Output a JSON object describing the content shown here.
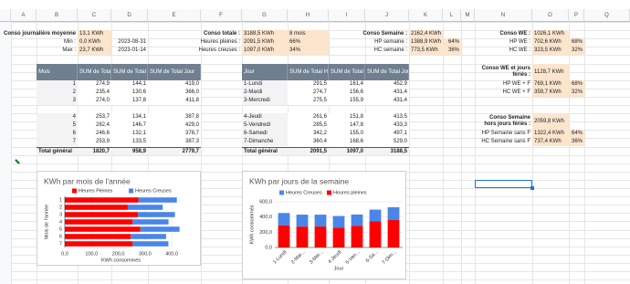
{
  "sheet": {
    "columns": [
      "A",
      "B",
      "C",
      "D",
      "E",
      "F",
      "G",
      "H",
      "I",
      "J",
      "K",
      "L",
      "M",
      "N",
      "O",
      "P",
      "Q"
    ],
    "daily": {
      "label": "Conso journalière moyenne :",
      "value": "13,1 KWh",
      "min_label": "Min :",
      "min_value": "0,0 KWh",
      "min_date": "2023-08-31",
      "max_label": "Max :",
      "max_value": "23,7 KWh",
      "max_date": "2023-01-14"
    },
    "total": {
      "label": "Conso totale :",
      "value": "3188,5 KWh",
      "months": "8 mois",
      "hp_label": "Heures pleines :",
      "hp_value": "2091,5 KWh",
      "hp_pct": "66%",
      "hc_label": "Heures creuses :",
      "hc_value": "1097,0 KWh",
      "hc_pct": "34%"
    },
    "week": {
      "label": "Conso Semaine :",
      "value": "2162,4 KWh",
      "hp_label": "HP semaine :",
      "hp_value": "1388,9 KWh",
      "hp_pct": "64%",
      "hc_label": "HC semaine :",
      "hc_value": "773,5 KWh",
      "hc_pct": "36%"
    },
    "weekend": {
      "label": "Conso WE :",
      "value": "1026,1 KWh",
      "hp_label": "HP WE :",
      "hp_value": "702,6 KWh",
      "hp_pct": "68%",
      "hc_label": "HC WE :",
      "hc_value": "323,5 KWh",
      "hc_pct": "32%"
    },
    "weekend_holidays": {
      "label": "Conso WE et jours fériés :",
      "value": "1128,7 KWh",
      "hp_label": "HP WE + F",
      "hp_value": "769,1 KWh",
      "hp_pct": "68%",
      "hc_label": "HC WE + F",
      "hc_value": "359,7 KWh",
      "hc_pct": "32%"
    },
    "week_no_holidays": {
      "label": "Conso Semaine hors jours fériés :",
      "value": "2059,8 KWh",
      "hp_label": "HP Semaine sans F",
      "hp_value": "1322,4 KWh",
      "hp_pct": "64%",
      "hc_label": "HC Semaine sans F",
      "hc_value": "737,4 KWh",
      "hc_pct": "36%"
    },
    "pivot_month": {
      "headers": [
        "Mois",
        "SUM de Total HP",
        "SUM de Total HC",
        "SUM de Total Jour"
      ],
      "rows": [
        [
          "1",
          "274,9",
          "144,1",
          "419,0"
        ],
        [
          "2",
          "235,4",
          "130,6",
          "366,0"
        ],
        [
          "3",
          "274,0",
          "137,8",
          "411,8"
        ],
        [
          "4",
          "253,7",
          "134,1",
          "387,8"
        ],
        [
          "5",
          "282,4",
          "146,7",
          "429,0"
        ],
        [
          "6",
          "246,6",
          "132,1",
          "378,7"
        ],
        [
          "7",
          "253,9",
          "133,5",
          "387,3"
        ]
      ],
      "total": [
        "Total général",
        "1820,7",
        "958,9",
        "2779,7"
      ]
    },
    "pivot_day": {
      "headers": [
        "Jour",
        "SUM de Total HP",
        "SUM de Total HC",
        "SUM de Total Jour"
      ],
      "rows": [
        [
          "1-Lundi",
          "291,5",
          "161,4",
          "452,9"
        ],
        [
          "2-Mardi",
          "274,7",
          "156,6",
          "431,4"
        ],
        [
          "3-Mercredi",
          "275,5",
          "155,9",
          "431,4"
        ],
        [
          "4-Jeudi",
          "261,6",
          "151,8",
          "413,5"
        ],
        [
          "5-Vendredi",
          "285,5",
          "147,8",
          "433,3"
        ],
        [
          "6-Samedi",
          "342,2",
          "155,0",
          "497,1"
        ],
        [
          "7-Dimanche",
          "360,4",
          "168,6",
          "529,0"
        ]
      ],
      "total": [
        "Total général",
        "2091,5",
        "1097,0",
        "3188,5"
      ]
    }
  },
  "chart_data": [
    {
      "type": "bar",
      "title": "KWh par mois de l'année",
      "x_label": "KWh consommés",
      "y_label": "Mois de l'année",
      "categories": [
        "1",
        "2",
        "3",
        "4",
        "5",
        "6",
        "7"
      ],
      "series": [
        {
          "name": "Heures Pleines",
          "color": "#ff0000",
          "values": [
            274.9,
            235.4,
            274.0,
            253.7,
            282.4,
            246.6,
            253.9
          ]
        },
        {
          "name": "Heures Creuses",
          "color": "#4a86e8",
          "values": [
            144.1,
            130.6,
            137.8,
            134.1,
            146.7,
            132.1,
            133.5
          ]
        }
      ],
      "xlim": [
        0,
        420
      ],
      "xticks": [
        {
          "value": 0,
          "label": "0,0"
        },
        {
          "value": 100,
          "label": "100,0"
        },
        {
          "value": 200,
          "label": "200,0"
        },
        {
          "value": 300,
          "label": "300,0"
        },
        {
          "value": 400,
          "label": "400,0"
        }
      ],
      "grid": true
    },
    {
      "type": "column",
      "title": "KWh par jours de la semaine",
      "x_label": "Jour",
      "y_label": "KWh consommés",
      "categories": [
        "1-Lundi",
        "2-Mar...",
        "3-Mer...",
        "4-Jeudi",
        "5-Ven...",
        "6-Sa...",
        "7-Dim..."
      ],
      "series": [
        {
          "name": "Heures Creuses",
          "color": "#4a86e8",
          "values": [
            161.4,
            156.6,
            155.9,
            151.8,
            147.8,
            155.0,
            168.6
          ]
        },
        {
          "name": "Heures pleines",
          "color": "#ff0000",
          "values": [
            291.5,
            274.7,
            275.5,
            261.6,
            285.5,
            342.2,
            360.4
          ]
        }
      ],
      "ylim": [
        0,
        600
      ],
      "yticks": [
        {
          "value": 0,
          "label": "0,0"
        },
        {
          "value": 200,
          "label": "200,0"
        },
        {
          "value": 400,
          "label": "400,0"
        },
        {
          "value": 600,
          "label": "600,0"
        }
      ],
      "grid": true
    }
  ]
}
